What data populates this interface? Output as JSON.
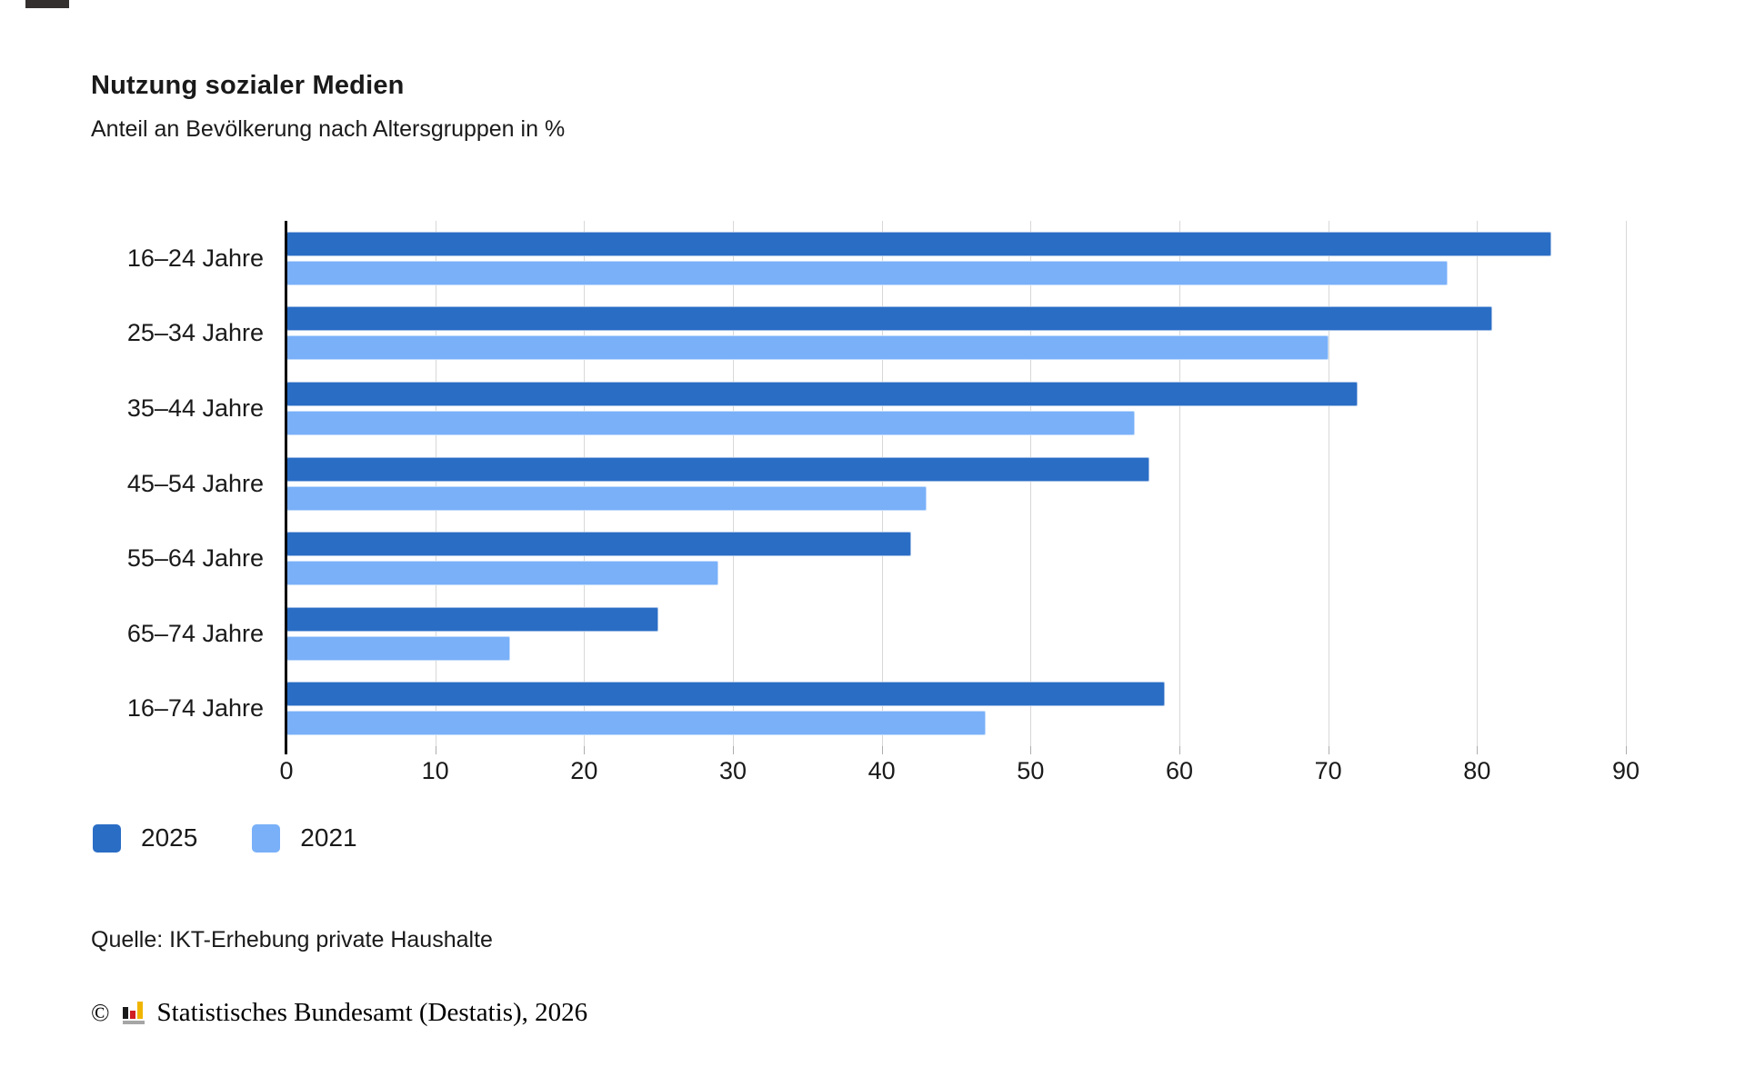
{
  "chart_data": {
    "type": "bar",
    "orientation": "horizontal",
    "title": "Nutzung sozialer Medien",
    "subtitle": "Anteil an Bevölkerung nach Altersgruppen in %",
    "categories": [
      "16–24 Jahre",
      "25–34 Jahre",
      "35–44 Jahre",
      "45–54 Jahre",
      "55–64 Jahre",
      "65–74 Jahre",
      "16–74 Jahre"
    ],
    "series": [
      {
        "name": "2025",
        "color": "#2a6dc5",
        "values": [
          85,
          81,
          72,
          58,
          42,
          25,
          59
        ]
      },
      {
        "name": "2021",
        "color": "#79b0f8",
        "values": [
          78,
          70,
          57,
          43,
          29,
          15,
          47
        ]
      }
    ],
    "xlim": [
      0,
      90
    ],
    "xticks": [
      0,
      10,
      20,
      30,
      40,
      50,
      60,
      70,
      80,
      90
    ],
    "grid": true,
    "legend_position": "bottom-left",
    "unit": "%"
  },
  "footer": {
    "source": "Quelle: IKT-Erhebung private Haushalte",
    "copyright_symbol": "©",
    "copyright_text": "Statistisches Bundesamt (Destatis), 2026"
  },
  "colors": {
    "series_2025": "#2a6dc5",
    "series_2021": "#79b0f8",
    "gridline": "#d8d8d8",
    "axis": "#000000",
    "logo_black": "#1a1a1a",
    "logo_red": "#cf1f25",
    "logo_yellow": "#f0b500",
    "logo_gray": "#a6a6a6"
  }
}
